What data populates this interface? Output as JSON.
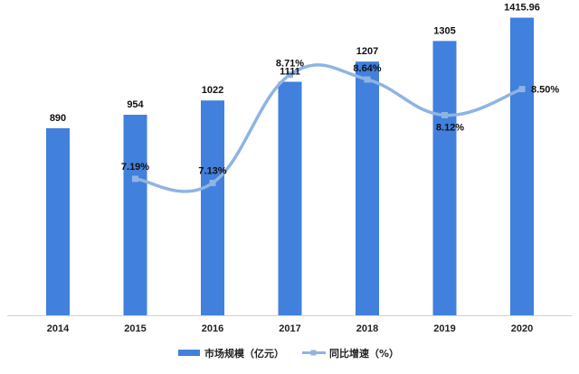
{
  "chart_data": {
    "type": "bar",
    "categories": [
      "2014",
      "2015",
      "2016",
      "2017",
      "2018",
      "2019",
      "2020"
    ],
    "series": [
      {
        "name": "市场规模（亿元）",
        "type": "bar",
        "values": [
          890,
          954,
          1022,
          1111,
          1207,
          1305,
          1415.96
        ],
        "labels": [
          "890",
          "954",
          "1022",
          "1111",
          "1207",
          "1305",
          "1415.96"
        ],
        "color": "#4180DC"
      },
      {
        "name": "同比增速（%）",
        "type": "line",
        "smooth": true,
        "values": [
          null,
          7.19,
          7.13,
          8.71,
          8.64,
          8.12,
          8.5
        ],
        "labels": [
          null,
          "7.19%",
          "7.13%",
          "8.71%",
          "8.64%",
          "8.12%",
          "8.50%"
        ],
        "color": "#8FB4E3"
      }
    ],
    "y1lim": [
      0,
      1500
    ],
    "y2lim": [
      5.2,
      9.8
    ],
    "grid": false,
    "legend": "bottom"
  }
}
